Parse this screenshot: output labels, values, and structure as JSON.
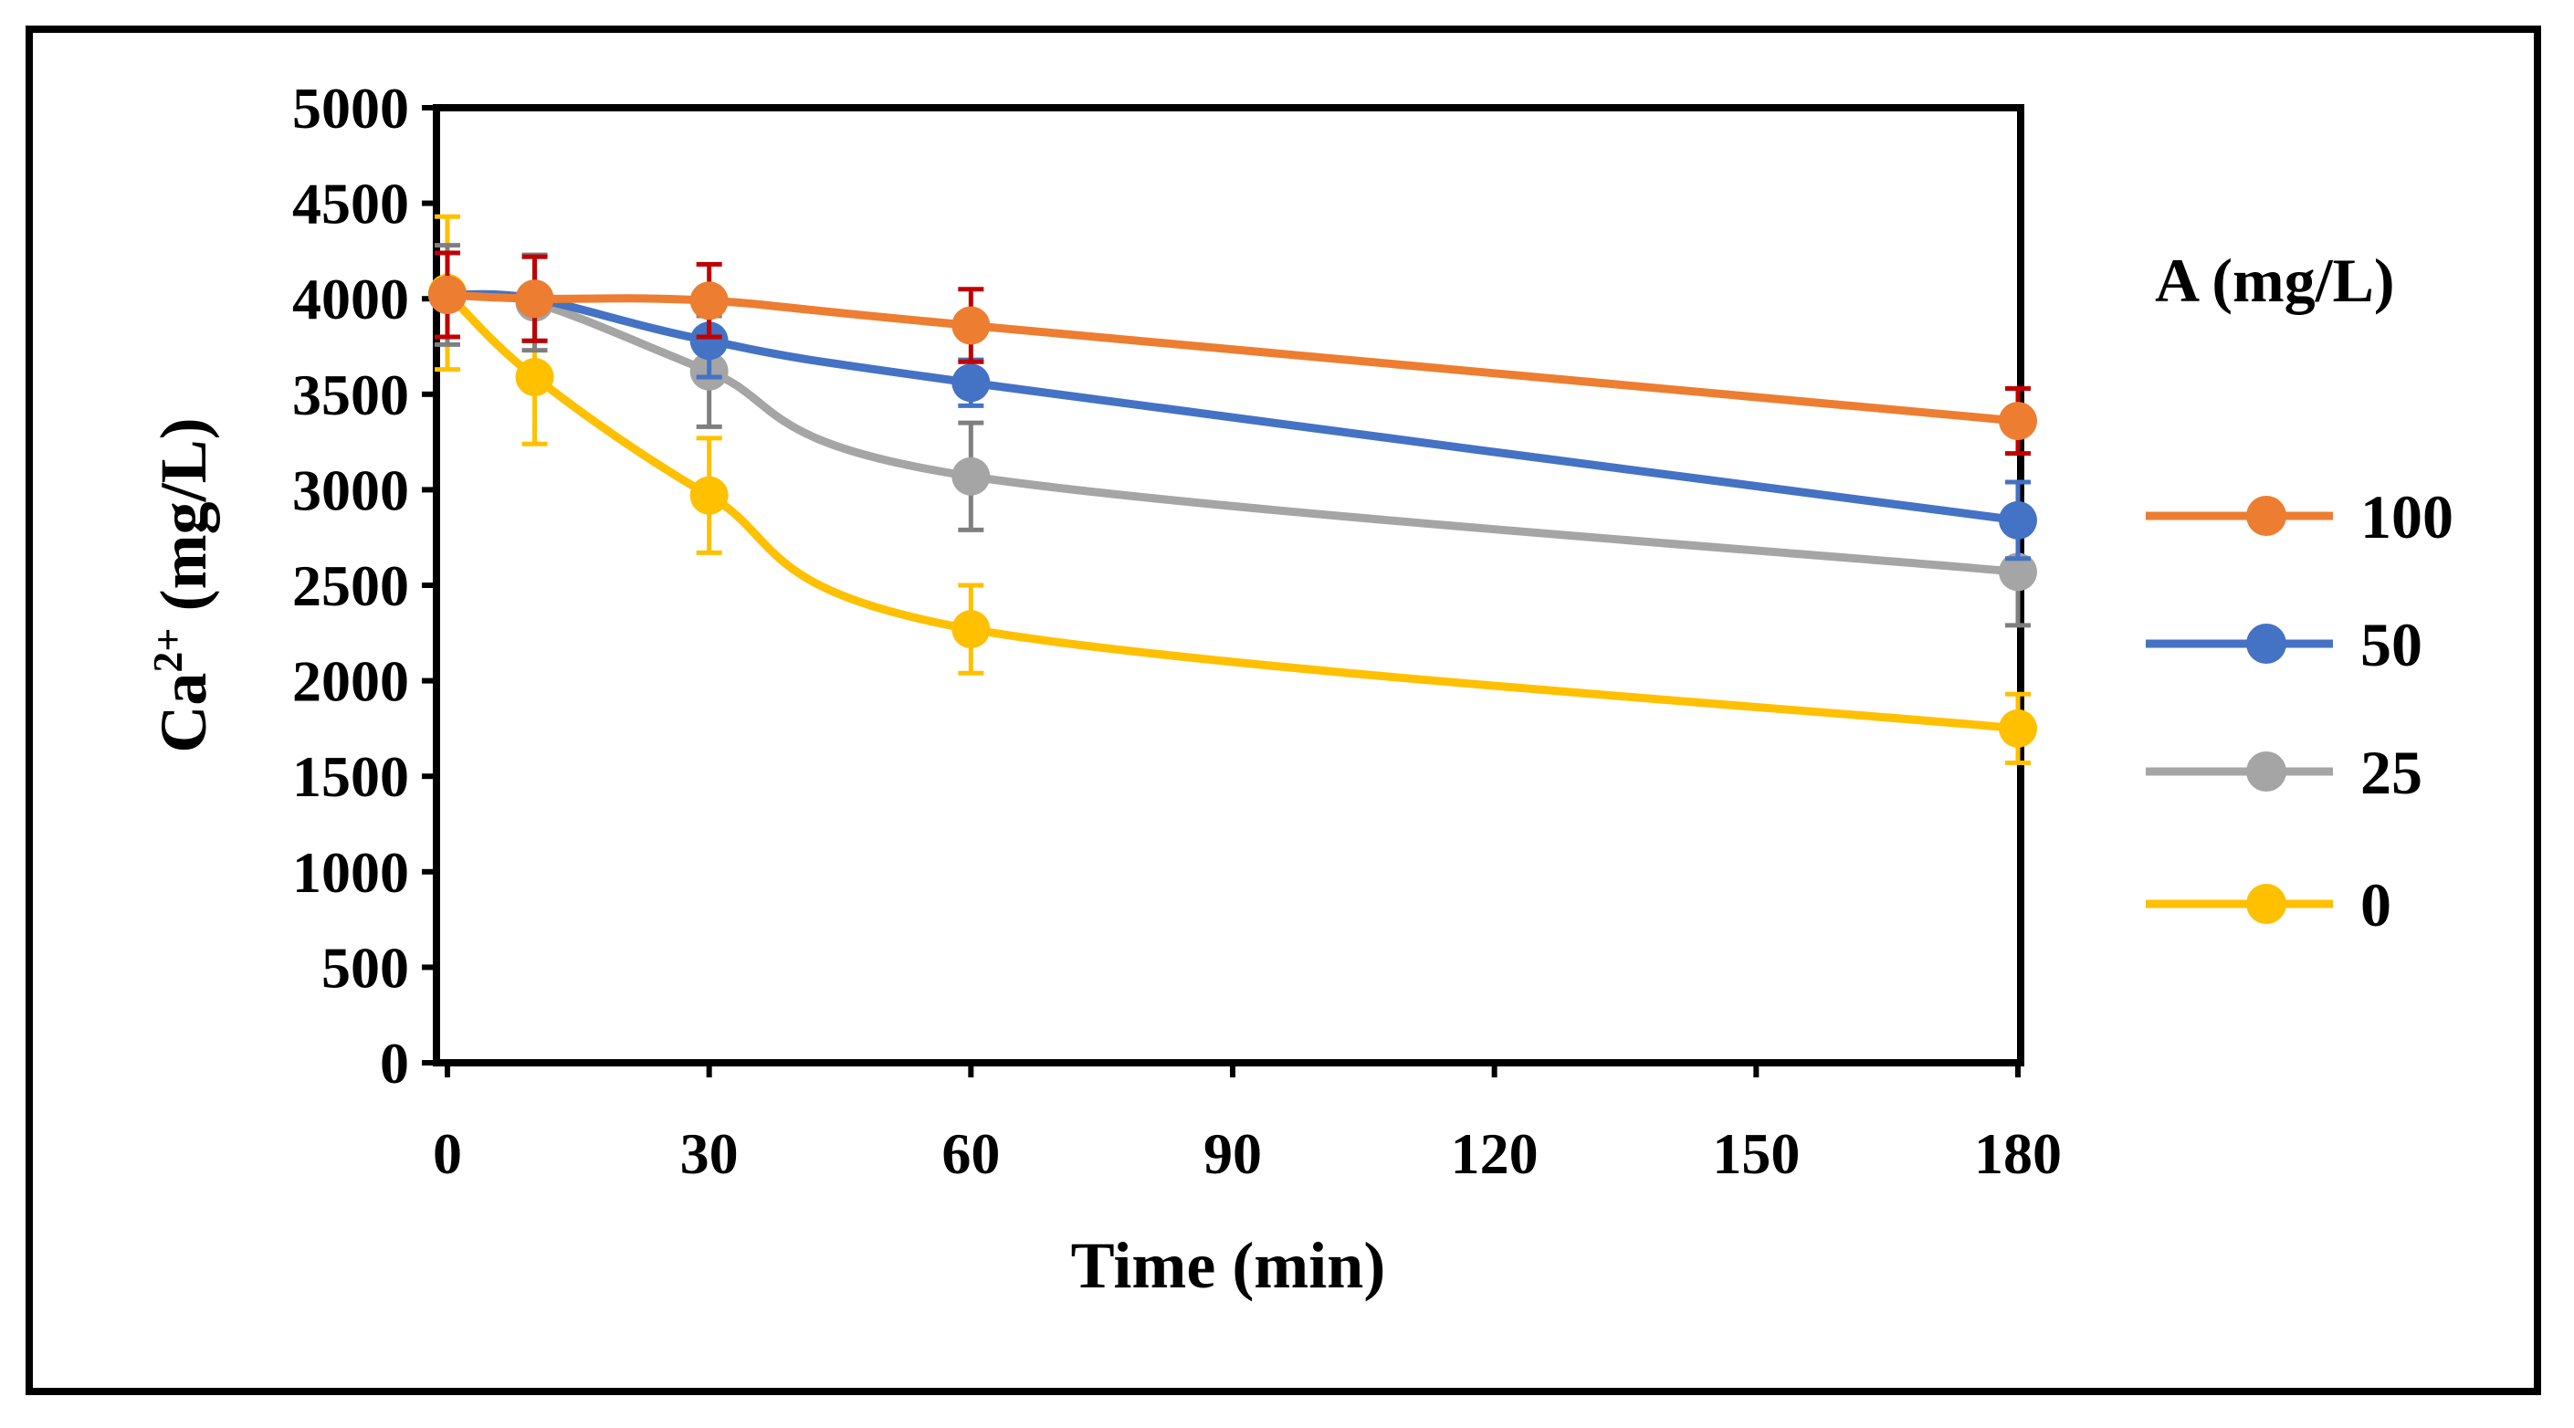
{
  "chart_data": {
    "type": "line",
    "title": "",
    "xlabel": "Time (min)",
    "ylabel_main": "Ca",
    "ylabel_sup": "2+",
    "ylabel_rest": " (mg/L)",
    "x": [
      0,
      10,
      30,
      60,
      180
    ],
    "xticks": [
      "0",
      "30",
      "60",
      "90",
      "120",
      "150",
      "180"
    ],
    "xtick_values": [
      0,
      30,
      60,
      90,
      120,
      150,
      180
    ],
    "yticks": [
      "0",
      "500",
      "1000",
      "1500",
      "2000",
      "2500",
      "3000",
      "3500",
      "4000",
      "4500",
      "5000"
    ],
    "ytick_values": [
      0,
      500,
      1000,
      1500,
      2000,
      2500,
      3000,
      3500,
      4000,
      4500,
      5000
    ],
    "xlim": [
      0,
      180
    ],
    "ylim": [
      0,
      5000
    ],
    "grid": false,
    "legend_position": "right",
    "legend_title": "A (mg/L)",
    "series": [
      {
        "name": "100",
        "color": "#ED7D31",
        "errcolor": "#C00000",
        "values": [
          4020,
          4000,
          3990,
          3860,
          3360
        ],
        "errors": [
          220,
          220,
          190,
          190,
          170
        ]
      },
      {
        "name": "50",
        "color": "#4472C4",
        "errcolor": "#4472C4",
        "values": [
          4020,
          4000,
          3780,
          3560,
          2840
        ],
        "errors": [
          220,
          220,
          190,
          120,
          200
        ]
      },
      {
        "name": "25",
        "color": "#A5A5A5",
        "errcolor": "#7F7F7F",
        "values": [
          4020,
          3980,
          3620,
          3070,
          2570
        ],
        "errors": [
          260,
          250,
          290,
          280,
          280
        ]
      },
      {
        "name": "0",
        "color": "#FFC000",
        "errcolor": "#FFC000",
        "values": [
          4030,
          3590,
          2970,
          2270,
          1750
        ],
        "errors": [
          400,
          350,
          300,
          230,
          180
        ]
      }
    ]
  }
}
